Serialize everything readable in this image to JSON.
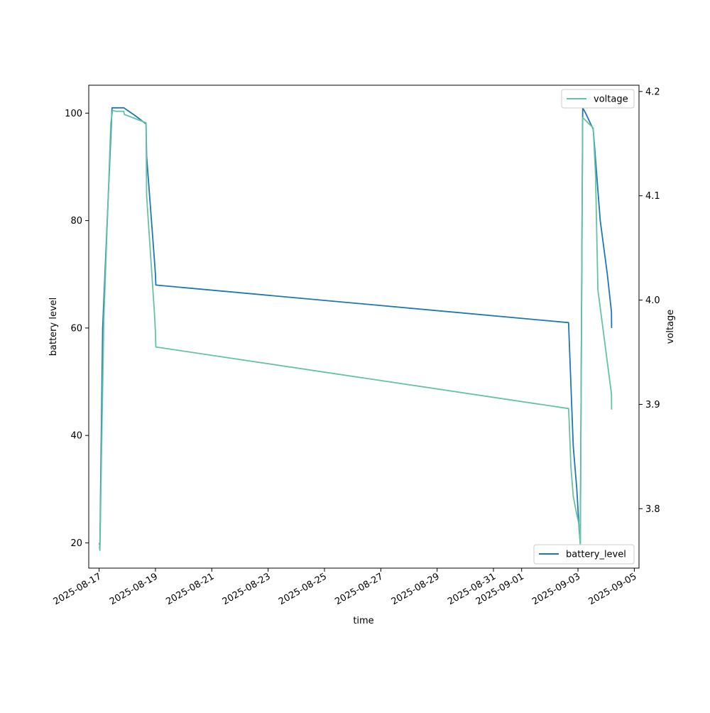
{
  "chart_data": {
    "type": "line",
    "title": "",
    "xlabel": "time",
    "ylabel": "battery level",
    "ylabel_right": "voltage",
    "x_axis": {
      "scale": "date",
      "range": [
        "2025-08-16T15:10",
        "2025-09-05T04:00"
      ],
      "ticks": [
        "2025-08-17",
        "2025-08-19",
        "2025-08-21",
        "2025-08-23",
        "2025-08-25",
        "2025-08-27",
        "2025-08-29",
        "2025-08-31",
        "2025-09-01",
        "2025-09-03",
        "2025-09-05"
      ]
    },
    "y_axis_left": {
      "range": [
        15.3,
        105.2
      ],
      "ticks": [
        20,
        40,
        60,
        80,
        100
      ]
    },
    "y_axis_right": {
      "range": [
        3.743,
        4.206
      ],
      "ticks": [
        "3.8",
        "3.9",
        "4.0",
        "4.1",
        "4.2"
      ]
    },
    "grid": false,
    "series": [
      {
        "name": "battery_level",
        "axis": "left",
        "color": "#1f77b4",
        "legend_position": "lower-right",
        "points": [
          [
            "2025-08-17T00:10",
            20
          ],
          [
            "2025-08-17T00:40",
            19.5
          ],
          [
            "2025-08-17T03:00",
            60
          ],
          [
            "2025-08-17T11:00",
            101
          ],
          [
            "2025-08-17T15:00",
            101
          ],
          [
            "2025-08-17T21:00",
            101
          ],
          [
            "2025-08-18T07:00",
            99.5
          ],
          [
            "2025-08-18T16:00",
            98
          ],
          [
            "2025-08-18T16:30",
            92
          ],
          [
            "2025-08-18T23:00",
            73
          ],
          [
            "2025-08-19T00:00",
            70
          ],
          [
            "2025-08-19T00:20",
            68
          ],
          [
            "2025-09-02T16:00",
            61
          ],
          [
            "2025-09-02T17:00",
            55
          ],
          [
            "2025-09-02T20:00",
            38
          ],
          [
            "2025-09-02T23:00",
            30
          ],
          [
            "2025-09-03T01:00",
            22.5
          ],
          [
            "2025-09-03T02:00",
            20
          ],
          [
            "2025-09-03T04:00",
            101
          ],
          [
            "2025-09-03T06:30",
            100
          ],
          [
            "2025-09-03T13:00",
            97
          ],
          [
            "2025-09-03T19:00",
            80
          ],
          [
            "2025-09-04T01:00",
            70
          ],
          [
            "2025-09-04T04:30",
            63
          ],
          [
            "2025-09-04T04:40",
            60
          ]
        ]
      },
      {
        "name": "voltage",
        "axis": "right",
        "color": "#66c2a5",
        "legend_position": "upper-right",
        "points": [
          [
            "2025-08-17T00:10",
            3.764
          ],
          [
            "2025-08-17T00:40",
            3.76
          ],
          [
            "2025-08-17T04:00",
            3.98
          ],
          [
            "2025-08-17T10:00",
            4.17
          ],
          [
            "2025-08-17T11:30",
            4.182
          ],
          [
            "2025-08-17T14:00",
            4.181
          ],
          [
            "2025-08-17T21:00",
            4.181
          ],
          [
            "2025-08-17T21:30",
            4.178
          ],
          [
            "2025-08-18T16:00",
            4.17
          ],
          [
            "2025-08-18T16:30",
            4.1
          ],
          [
            "2025-08-18T23:00",
            3.99
          ],
          [
            "2025-08-19T00:00",
            3.97
          ],
          [
            "2025-08-19T00:20",
            3.955
          ],
          [
            "2025-09-02T16:00",
            3.896
          ],
          [
            "2025-09-02T16:30",
            3.885
          ],
          [
            "2025-09-02T18:00",
            3.84
          ],
          [
            "2025-09-02T20:00",
            3.812
          ],
          [
            "2025-09-02T22:00",
            3.8
          ],
          [
            "2025-09-03T01:00",
            3.784
          ],
          [
            "2025-09-03T02:00",
            3.765
          ],
          [
            "2025-09-03T03:30",
            4.08
          ],
          [
            "2025-09-03T04:00",
            4.175
          ],
          [
            "2025-09-03T13:00",
            4.165
          ],
          [
            "2025-09-03T15:00",
            4.12
          ],
          [
            "2025-09-03T17:00",
            4.01
          ],
          [
            "2025-09-04T04:30",
            3.91
          ],
          [
            "2025-09-04T04:40",
            3.895
          ]
        ]
      }
    ]
  }
}
